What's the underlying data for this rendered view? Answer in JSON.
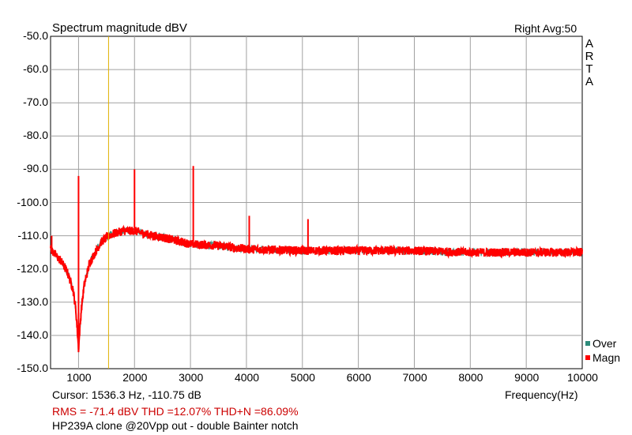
{
  "chart_data": {
    "type": "line",
    "title": "Spectrum magnitude dBV",
    "top_right": "Right  Avg:50",
    "watermark": [
      "A",
      "R",
      "T",
      "A"
    ],
    "xlabel": "Frequency(Hz)",
    "ylabel": "",
    "xlim": [
      500,
      10000
    ],
    "ylim": [
      -150,
      -50
    ],
    "x_ticks": [
      1000,
      2000,
      3000,
      4000,
      5000,
      6000,
      7000,
      8000,
      9000,
      10000
    ],
    "y_ticks": [
      "-50.0",
      "-60.0",
      "-70.0",
      "-80.0",
      "-90.0",
      "-100.0",
      "-110.0",
      "-120.0",
      "-130.0",
      "-140.0",
      "-150.0"
    ],
    "grid": true,
    "cursor_x": 1536.3,
    "legend": [
      {
        "name": "Over",
        "color": "#2e8b7a"
      },
      {
        "name": "Magn",
        "color": "#ff0000"
      }
    ],
    "series": [
      {
        "name": "Magn",
        "color": "#ff0000",
        "x": [
          500,
          600,
          700,
          800,
          900,
          950,
          980,
          1000,
          1020,
          1050,
          1100,
          1200,
          1300,
          1400,
          1500,
          1600,
          1700,
          1800,
          1900,
          2000,
          2200,
          2500,
          3000,
          3500,
          4000,
          5000,
          6000,
          7000,
          8000,
          9000,
          10000
        ],
        "y": [
          -114,
          -116,
          -118,
          -121,
          -126,
          -132,
          -139,
          -144,
          -139,
          -132,
          -125,
          -118,
          -115,
          -112,
          -110.5,
          -109.5,
          -109,
          -108.5,
          -108.5,
          -108.5,
          -109.5,
          -110.5,
          -112.5,
          -113,
          -114,
          -114.5,
          -114.5,
          -114.5,
          -115,
          -115,
          -115
        ]
      }
    ],
    "peaks": [
      {
        "x": 520,
        "y": -110
      },
      {
        "x": 1000,
        "y": -92
      },
      {
        "x": 2000,
        "y": -90
      },
      {
        "x": 3050,
        "y": -89
      },
      {
        "x": 4050,
        "y": -104
      },
      {
        "x": 5100,
        "y": -105
      }
    ]
  },
  "footer": {
    "cursor_text": "Cursor:  1536.3 Hz, -110.75 dB",
    "rms_text": "RMS =  -71.4 dBV   THD =12.07%   THD+N =86.09%",
    "description": "HP239A clone @20Vpp out - double Bainter notch"
  }
}
